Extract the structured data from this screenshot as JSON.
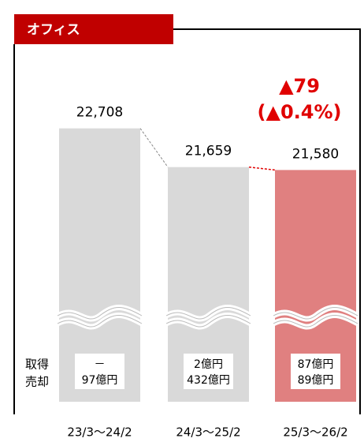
{
  "chart_data": {
    "type": "bar",
    "title": "オフィス",
    "categories": [
      "23/3～24/2",
      "24/3～25/2",
      "25/3～26/2"
    ],
    "values": [
      22708,
      21659,
      21580
    ],
    "value_labels": [
      "22,708",
      "21,659",
      "21,580"
    ],
    "colors": [
      "#d9d9d9",
      "#d9d9d9",
      "#e08080"
    ],
    "ylim": [
      15300,
      23000
    ],
    "annotations": [
      "▲79",
      "(▲0.4%)"
    ],
    "row_labels": [
      "取得",
      "売却"
    ],
    "table": [
      [
        "－",
        "97億円"
      ],
      [
        "2億円",
        "432億円"
      ],
      [
        "87億円",
        "89億円"
      ]
    ]
  }
}
